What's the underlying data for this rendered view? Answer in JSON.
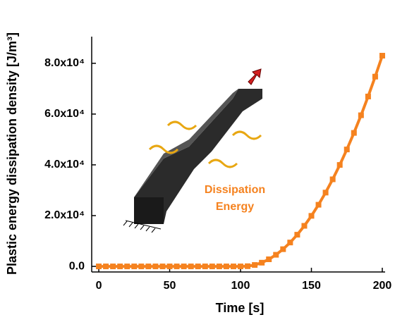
{
  "chart_data": {
    "type": "line",
    "x_label": "Time [s]",
    "y_label": "Plastic energy dissipation density [J/m³]",
    "annotations": [
      "Dissipation",
      "Energy"
    ],
    "xlim": [
      -5,
      202
    ],
    "ylim": [
      -2200,
      90500
    ],
    "xticks": [
      0,
      50,
      100,
      150,
      200
    ],
    "yticks": [
      {
        "value": 0,
        "label": "0.0"
      },
      {
        "value": 20000,
        "label": "2.0x10⁴"
      },
      {
        "value": 40000,
        "label": "4.0x10⁴"
      },
      {
        "value": 60000,
        "label": "6.0x10⁴"
      },
      {
        "value": 80000,
        "label": "8.0x10⁴"
      }
    ],
    "x": [
      0,
      5,
      10,
      15,
      20,
      25,
      30,
      35,
      40,
      45,
      50,
      55,
      60,
      65,
      70,
      75,
      80,
      85,
      90,
      95,
      100,
      105,
      110,
      115,
      120,
      125,
      130,
      135,
      140,
      145,
      150,
      155,
      160,
      165,
      170,
      175,
      180,
      185,
      190,
      195,
      200
    ],
    "series": [
      {
        "color": "#f5821f",
        "values": [
          0,
          0,
          0,
          0,
          0,
          0,
          0,
          0,
          0,
          0,
          0,
          0,
          0,
          0,
          0,
          0,
          0,
          0,
          0,
          0,
          0,
          78,
          553,
          1460,
          2800,
          4570,
          6780,
          9410,
          12480,
          15980,
          19910,
          24280,
          29070,
          34300,
          39960,
          46060,
          52580,
          59530,
          66920,
          74750,
          83000
        ]
      }
    ]
  }
}
